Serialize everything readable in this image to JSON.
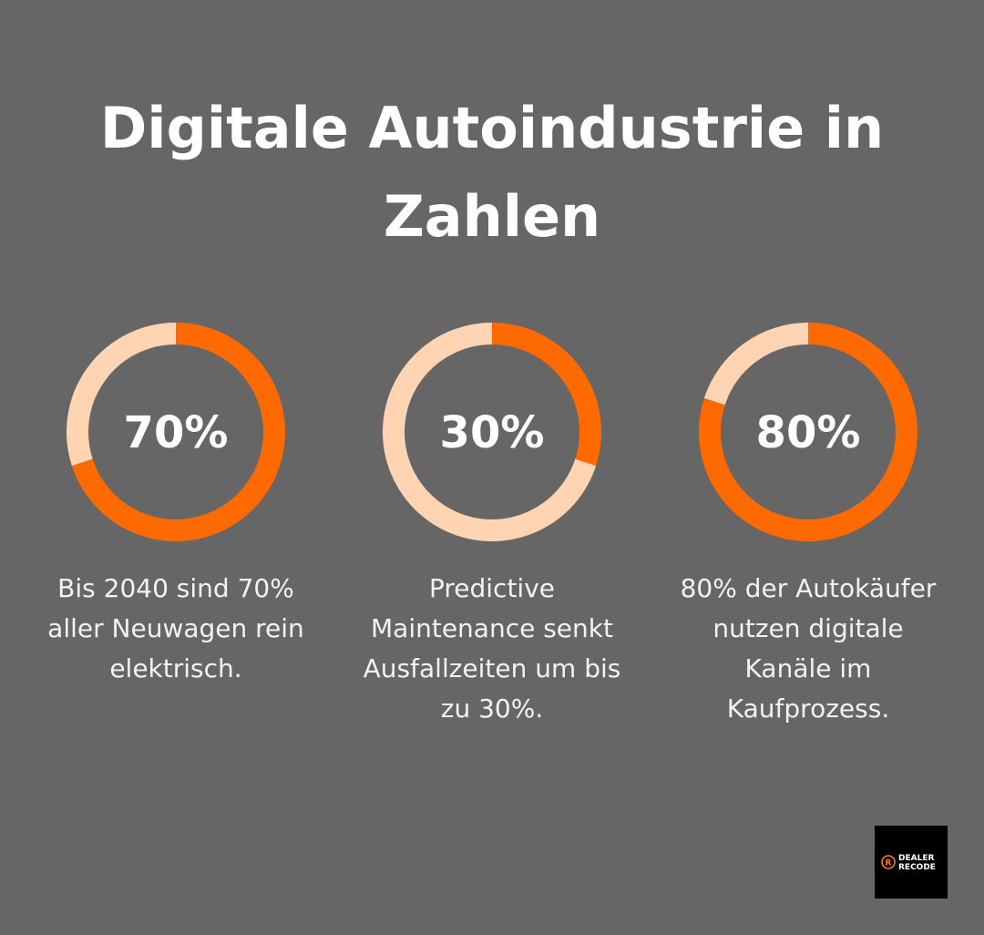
{
  "title": "Digitale Autoindustrie in Zahlen",
  "chart_data": [
    {
      "type": "donut",
      "values": [
        70,
        30
      ],
      "colors": [
        "#ff6a00",
        "#ffd4b2"
      ],
      "center_label": "70%",
      "caption": "Bis 2040 sind 70% aller Neuwagen rein elektrisch."
    },
    {
      "type": "donut",
      "values": [
        30,
        70
      ],
      "colors": [
        "#ff6a00",
        "#ffd4b2"
      ],
      "center_label": "30%",
      "caption": "Predictive Maintenance senkt Ausfallzeiten um bis zu 30%."
    },
    {
      "type": "donut",
      "values": [
        80,
        20
      ],
      "colors": [
        "#ff6a00",
        "#ffd4b2"
      ],
      "center_label": "80%",
      "caption": "80% der Autokäufer nutzen digitale Kanäle im Kaufprozess."
    }
  ],
  "logo": {
    "line1": "DEALER",
    "line2": "RECODE"
  }
}
